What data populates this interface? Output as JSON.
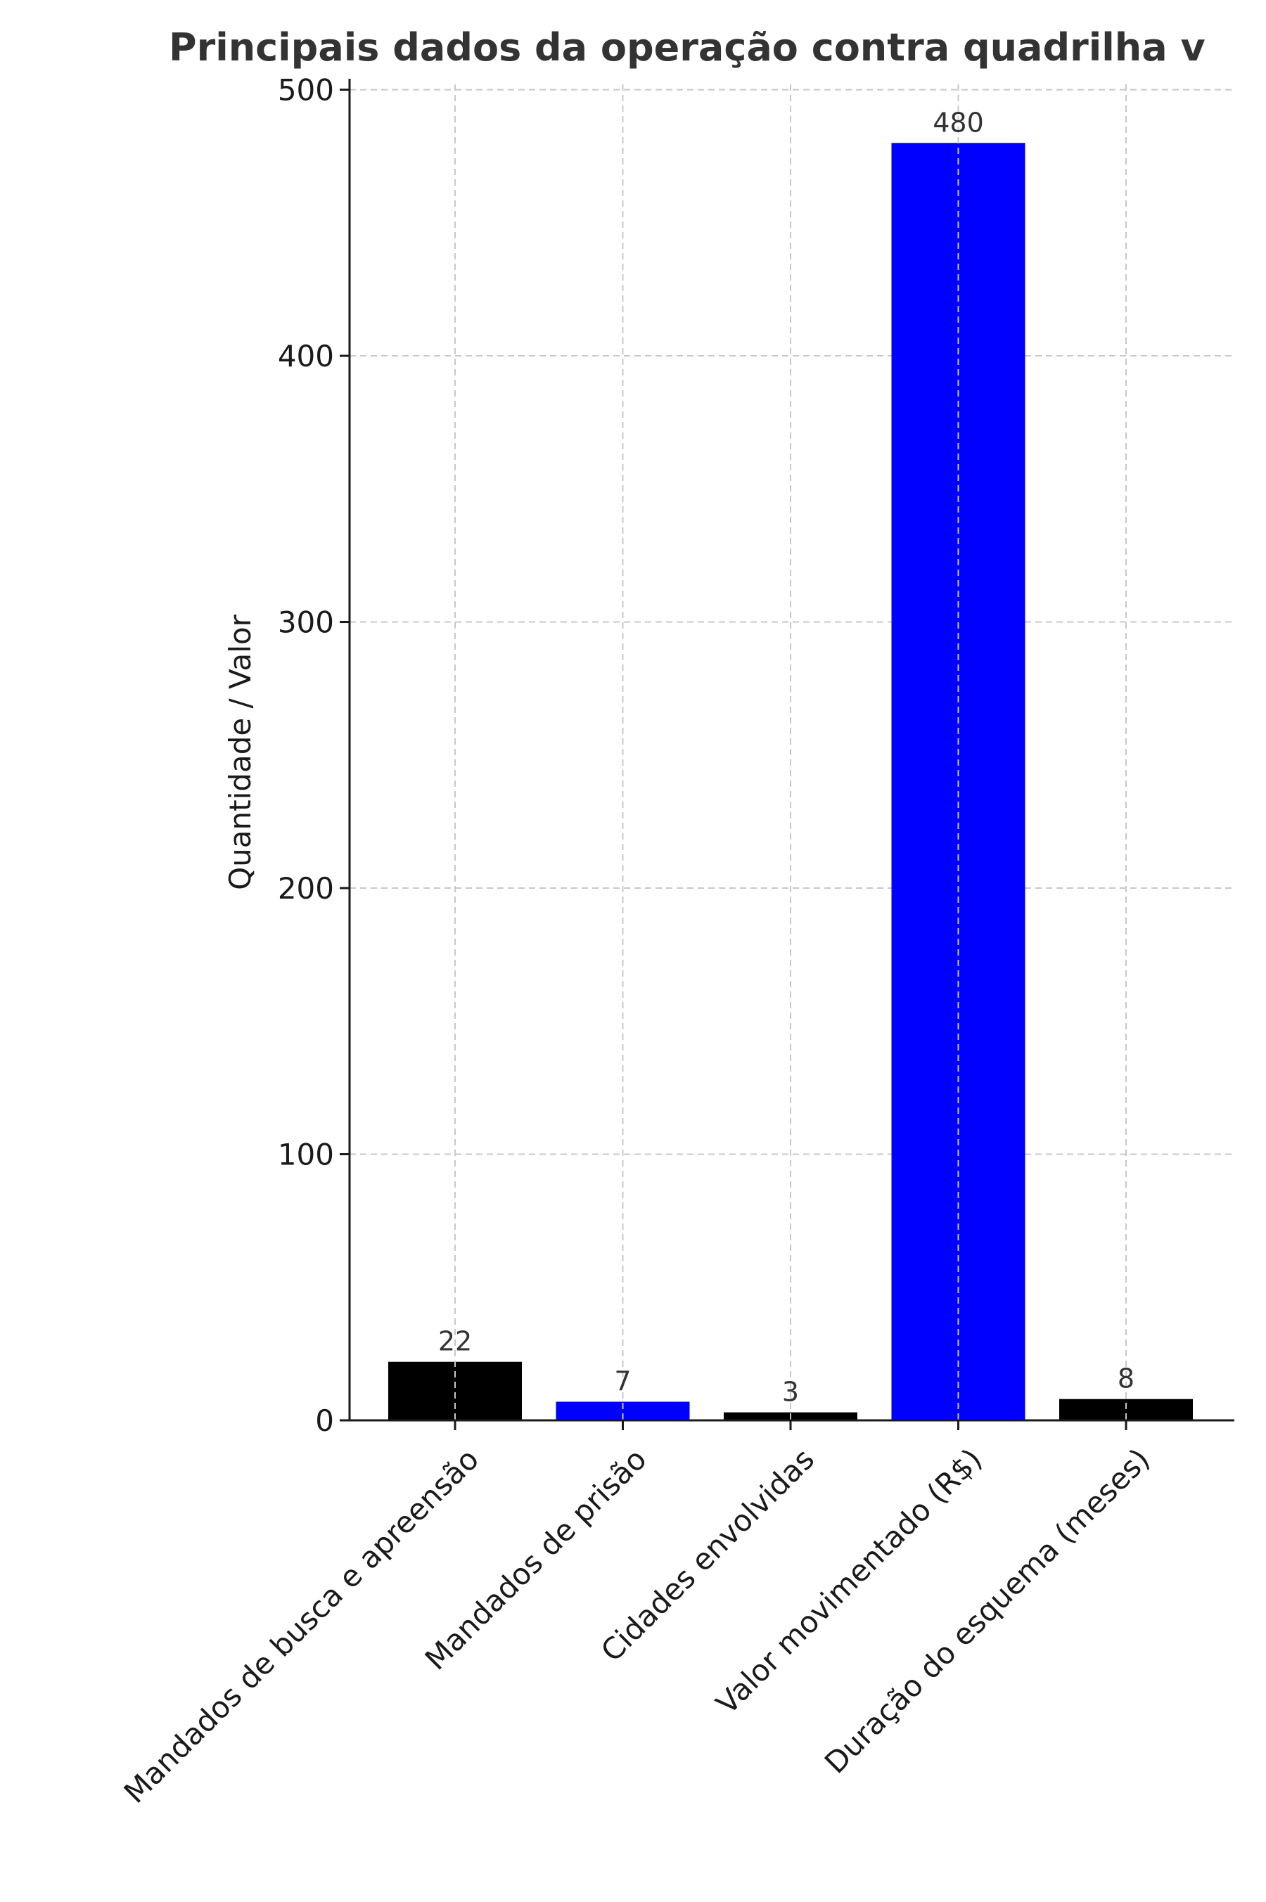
{
  "chart_data": {
    "type": "bar",
    "title": "Principais dados da operação contra quadrilha v",
    "xlabel": "",
    "ylabel": "Quantidade / Valor",
    "categories": [
      "Mandados de busca e apreensão",
      "Mandados de prisão",
      "Cidades envolvidas",
      "Valor movimentado (R$)",
      "Duração do esquema (meses)"
    ],
    "values": [
      22,
      7,
      3,
      480,
      8
    ],
    "value_labels": [
      "22",
      "7",
      "3",
      "480",
      "8"
    ],
    "bar_colors": [
      "#000000",
      "#0000ff",
      "#000000",
      "#0000ff",
      "#000000"
    ],
    "ylim": [
      0,
      502
    ],
    "yticks": [
      0,
      100,
      200,
      300,
      400,
      500
    ],
    "ytick_labels": [
      "0",
      "100",
      "200",
      "300",
      "400",
      "500"
    ],
    "grid": true,
    "legend": "none"
  }
}
